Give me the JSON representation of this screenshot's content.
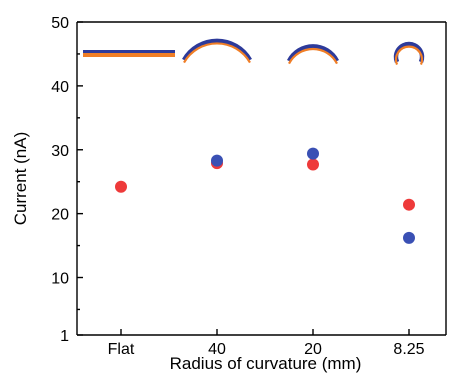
{
  "chart_data": {
    "type": "scatter",
    "xlabel": "Radius of curvature (mm)",
    "ylabel": "Current (nA)",
    "categories": [
      "Flat",
      "40",
      "20",
      "8.25"
    ],
    "ylim": [
      1,
      50
    ],
    "yticks": [
      1,
      10,
      20,
      30,
      40,
      50
    ],
    "grid": false,
    "legend": "none",
    "series": [
      {
        "color": "#ee3a3a",
        "values": [
          24.2,
          27.9,
          27.7,
          21.4
        ]
      },
      {
        "color": "#3a50b4",
        "values": [
          null,
          28.3,
          29.4,
          16.2
        ]
      }
    ],
    "inset_shapes": [
      {
        "category": "Flat",
        "shape": "flat-strip"
      },
      {
        "category": "40",
        "shape": "shallow-arc"
      },
      {
        "category": "20",
        "shape": "medium-arc"
      },
      {
        "category": "8.25",
        "shape": "tight-arc"
      }
    ],
    "strip_colors": {
      "outer": "#2d3a9a",
      "inner": "#f07e26"
    }
  }
}
